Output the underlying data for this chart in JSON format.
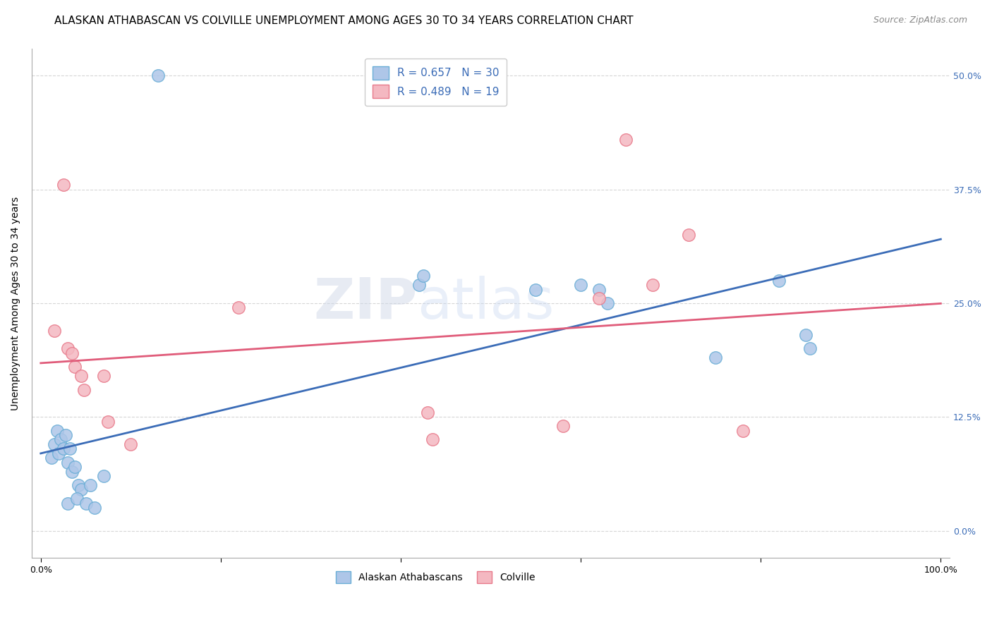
{
  "title": "ALASKAN ATHABASCAN VS COLVILLE UNEMPLOYMENT AMONG AGES 30 TO 34 YEARS CORRELATION CHART",
  "source": "Source: ZipAtlas.com",
  "ylabel": "Unemployment Among Ages 30 to 34 years",
  "ylabel_ticks": [
    "0.0%",
    "12.5%",
    "25.0%",
    "37.5%",
    "50.0%"
  ],
  "ylabel_tick_vals": [
    0,
    12.5,
    25.0,
    37.5,
    50.0
  ],
  "xlim": [
    -1,
    101
  ],
  "ylim": [
    -3,
    53
  ],
  "blue_color": "#aec6e8",
  "blue_edge": "#6aaed6",
  "pink_color": "#f4b8c1",
  "pink_edge": "#e8798a",
  "line_blue": "#3b6cb7",
  "line_pink": "#e05c7a",
  "watermark_part1": "ZIP",
  "watermark_part2": "atlas",
  "legend_text_color": "#3b6cb7",
  "blue_scatter_x": [
    13.0,
    1.2,
    1.5,
    1.8,
    2.0,
    2.2,
    2.5,
    2.8,
    3.0,
    3.2,
    3.5,
    3.8,
    4.2,
    4.5,
    5.5,
    7.0,
    42.0,
    42.5,
    55.0,
    60.0,
    62.0,
    63.0,
    75.0,
    82.0,
    85.0,
    85.5,
    3.0,
    4.0,
    5.0,
    6.0
  ],
  "blue_scatter_y": [
    50.0,
    8.0,
    9.5,
    11.0,
    8.5,
    10.0,
    9.0,
    10.5,
    7.5,
    9.0,
    6.5,
    7.0,
    5.0,
    4.5,
    5.0,
    6.0,
    27.0,
    28.0,
    26.5,
    27.0,
    26.5,
    25.0,
    19.0,
    27.5,
    21.5,
    20.0,
    3.0,
    3.5,
    3.0,
    2.5
  ],
  "pink_scatter_x": [
    2.5,
    1.5,
    3.0,
    3.5,
    3.8,
    4.5,
    4.8,
    7.0,
    7.5,
    22.0,
    62.0,
    65.0,
    68.0,
    72.0,
    78.0,
    43.0,
    43.5,
    58.0,
    10.0
  ],
  "pink_scatter_y": [
    38.0,
    22.0,
    20.0,
    19.5,
    18.0,
    17.0,
    15.5,
    17.0,
    12.0,
    24.5,
    25.5,
    43.0,
    27.0,
    32.5,
    11.0,
    13.0,
    10.0,
    11.5,
    9.5
  ],
  "title_fontsize": 11,
  "source_fontsize": 9,
  "tick_label_fontsize": 9,
  "axis_label_fontsize": 10,
  "background_color": "#ffffff",
  "grid_color": "#cccccc",
  "marker_size": 160
}
